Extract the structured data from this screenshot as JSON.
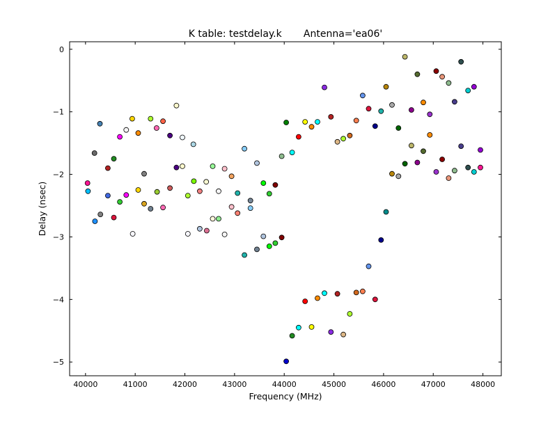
{
  "chart_data": {
    "type": "scatter",
    "title": "K table: testdelay.k       Antenna='ea06'",
    "xlabel": "Frequency (MHz)",
    "ylabel": "Delay (nsec)",
    "xlim": [
      39680,
      48370
    ],
    "ylim": [
      -5.22,
      0.12
    ],
    "xticks": [
      {
        "value": 40000,
        "label": "40000"
      },
      {
        "value": 41000,
        "label": "41000"
      },
      {
        "value": 42000,
        "label": "42000"
      },
      {
        "value": 43000,
        "label": "43000"
      },
      {
        "value": 44000,
        "label": "44000"
      },
      {
        "value": 45000,
        "label": "45000"
      },
      {
        "value": 46000,
        "label": "46000"
      },
      {
        "value": 47000,
        "label": "47000"
      },
      {
        "value": 48000,
        "label": "48000"
      }
    ],
    "yticks": [
      {
        "value": 0,
        "label": "0"
      },
      {
        "value": -1,
        "label": "−1"
      },
      {
        "value": -2,
        "label": "−2"
      },
      {
        "value": -3,
        "label": "−3"
      },
      {
        "value": -4,
        "label": "−4"
      },
      {
        "value": -5,
        "label": "−5"
      }
    ],
    "grid": false,
    "legend": "none",
    "points": [
      {
        "x": 40040,
        "y": -2.14,
        "color": "#ff1493"
      },
      {
        "x": 40050,
        "y": -2.27,
        "color": "#00bfff"
      },
      {
        "x": 40180,
        "y": -1.66,
        "color": "#696969"
      },
      {
        "x": 40190,
        "y": -2.75,
        "color": "#1e90ff"
      },
      {
        "x": 40290,
        "y": -1.19,
        "color": "#4682b4"
      },
      {
        "x": 40300,
        "y": -2.64,
        "color": "#808080"
      },
      {
        "x": 40450,
        "y": -1.9,
        "color": "#b22222"
      },
      {
        "x": 40450,
        "y": -2.34,
        "color": "#4169e1"
      },
      {
        "x": 40570,
        "y": -1.75,
        "color": "#228b22"
      },
      {
        "x": 40570,
        "y": -2.69,
        "color": "#dc143c"
      },
      {
        "x": 40690,
        "y": -1.4,
        "color": "#ff00ff"
      },
      {
        "x": 40690,
        "y": -2.44,
        "color": "#32cd32"
      },
      {
        "x": 40820,
        "y": -1.29,
        "color": "#f5f5f5"
      },
      {
        "x": 40820,
        "y": -2.33,
        "color": "#ff00ff"
      },
      {
        "x": 40940,
        "y": -1.11,
        "color": "#ffd700"
      },
      {
        "x": 40950,
        "y": -2.95,
        "color": "#f8f8ff"
      },
      {
        "x": 41060,
        "y": -1.34,
        "color": "#ff8c00"
      },
      {
        "x": 41060,
        "y": -2.25,
        "color": "#ffd700"
      },
      {
        "x": 41180,
        "y": -1.99,
        "color": "#808080"
      },
      {
        "x": 41180,
        "y": -2.47,
        "color": "#daa520"
      },
      {
        "x": 41310,
        "y": -1.11,
        "color": "#adff2f"
      },
      {
        "x": 41310,
        "y": -2.55,
        "color": "#708090"
      },
      {
        "x": 41430,
        "y": -1.26,
        "color": "#ff69b4"
      },
      {
        "x": 41440,
        "y": -2.28,
        "color": "#9acd32"
      },
      {
        "x": 41560,
        "y": -1.15,
        "color": "#ff6347"
      },
      {
        "x": 41560,
        "y": -2.53,
        "color": "#ff69b4"
      },
      {
        "x": 41700,
        "y": -1.38,
        "color": "#4b0082"
      },
      {
        "x": 41700,
        "y": -2.22,
        "color": "#cd5c5c"
      },
      {
        "x": 41830,
        "y": -0.9,
        "color": "#fffacd"
      },
      {
        "x": 41830,
        "y": -1.89,
        "color": "#4b0082"
      },
      {
        "x": 41950,
        "y": -1.41,
        "color": "#f0f8ff"
      },
      {
        "x": 41950,
        "y": -1.87,
        "color": "#fffacd"
      },
      {
        "x": 42060,
        "y": -2.34,
        "color": "#adff2f"
      },
      {
        "x": 42060,
        "y": -2.95,
        "color": "#f8f8ff"
      },
      {
        "x": 42170,
        "y": -1.52,
        "color": "#add8e6"
      },
      {
        "x": 42180,
        "y": -2.11,
        "color": "#7cfc00"
      },
      {
        "x": 42300,
        "y": -2.27,
        "color": "#f08080"
      },
      {
        "x": 42300,
        "y": -2.87,
        "color": "#b0c4de"
      },
      {
        "x": 42430,
        "y": -2.12,
        "color": "#fafad2"
      },
      {
        "x": 42440,
        "y": -2.9,
        "color": "#db7093"
      },
      {
        "x": 42560,
        "y": -1.87,
        "color": "#98fb98"
      },
      {
        "x": 42560,
        "y": -2.71,
        "color": "#fff8dc"
      },
      {
        "x": 42680,
        "y": -2.27,
        "color": "#f5f5f5"
      },
      {
        "x": 42680,
        "y": -2.71,
        "color": "#90ee90"
      },
      {
        "x": 42800,
        "y": -1.91,
        "color": "#ffc0cb"
      },
      {
        "x": 42800,
        "y": -2.96,
        "color": "#f5f5f5"
      },
      {
        "x": 42940,
        "y": -2.03,
        "color": "#f4a460"
      },
      {
        "x": 42940,
        "y": -2.52,
        "color": "#ffc0cb"
      },
      {
        "x": 43060,
        "y": -2.3,
        "color": "#20b2aa"
      },
      {
        "x": 43060,
        "y": -2.62,
        "color": "#fa8072"
      },
      {
        "x": 43200,
        "y": -1.59,
        "color": "#87cefa"
      },
      {
        "x": 43200,
        "y": -3.29,
        "color": "#20b2aa"
      },
      {
        "x": 43320,
        "y": -2.42,
        "color": "#778899"
      },
      {
        "x": 43320,
        "y": -2.54,
        "color": "#87cefa"
      },
      {
        "x": 43450,
        "y": -1.82,
        "color": "#b0c4de"
      },
      {
        "x": 43450,
        "y": -3.2,
        "color": "#708090"
      },
      {
        "x": 43580,
        "y": -2.14,
        "color": "#00ff00"
      },
      {
        "x": 43580,
        "y": -2.99,
        "color": "#b0c4de"
      },
      {
        "x": 43700,
        "y": -2.31,
        "color": "#32cd32"
      },
      {
        "x": 43700,
        "y": -3.15,
        "color": "#00ff00"
      },
      {
        "x": 43820,
        "y": -2.17,
        "color": "#800000"
      },
      {
        "x": 43820,
        "y": -3.1,
        "color": "#32cd32"
      },
      {
        "x": 43950,
        "y": -1.71,
        "color": "#8fbc8f"
      },
      {
        "x": 43950,
        "y": -3.01,
        "color": "#800000"
      },
      {
        "x": 44040,
        "y": -1.17,
        "color": "#008000"
      },
      {
        "x": 44040,
        "y": -4.99,
        "color": "#0000cd"
      },
      {
        "x": 44160,
        "y": -1.65,
        "color": "#00ffff"
      },
      {
        "x": 44160,
        "y": -4.58,
        "color": "#228b22"
      },
      {
        "x": 44290,
        "y": -1.4,
        "color": "#ff0000"
      },
      {
        "x": 44290,
        "y": -4.45,
        "color": "#00ffff"
      },
      {
        "x": 44420,
        "y": -1.16,
        "color": "#ffff00"
      },
      {
        "x": 44420,
        "y": -4.03,
        "color": "#ff0000"
      },
      {
        "x": 44550,
        "y": -1.24,
        "color": "#ff8c00"
      },
      {
        "x": 44550,
        "y": -4.44,
        "color": "#ffff00"
      },
      {
        "x": 44670,
        "y": -1.16,
        "color": "#00ffff"
      },
      {
        "x": 44670,
        "y": -3.98,
        "color": "#ff8c00"
      },
      {
        "x": 44810,
        "y": -0.61,
        "color": "#8a2be2"
      },
      {
        "x": 44810,
        "y": -3.9,
        "color": "#00ffff"
      },
      {
        "x": 44940,
        "y": -1.08,
        "color": "#b22222"
      },
      {
        "x": 44940,
        "y": -4.52,
        "color": "#8a2be2"
      },
      {
        "x": 45070,
        "y": -1.48,
        "color": "#deb887"
      },
      {
        "x": 45070,
        "y": -3.91,
        "color": "#b22222"
      },
      {
        "x": 45190,
        "y": -1.43,
        "color": "#adff2f"
      },
      {
        "x": 45190,
        "y": -4.56,
        "color": "#deb887"
      },
      {
        "x": 45320,
        "y": -1.38,
        "color": "#d2691e"
      },
      {
        "x": 45320,
        "y": -4.23,
        "color": "#adff2f"
      },
      {
        "x": 45450,
        "y": -1.14,
        "color": "#ff7f50"
      },
      {
        "x": 45450,
        "y": -3.89,
        "color": "#d2691e"
      },
      {
        "x": 45580,
        "y": -0.74,
        "color": "#6495ed"
      },
      {
        "x": 45580,
        "y": -3.87,
        "color": "#ff7f50"
      },
      {
        "x": 45700,
        "y": -0.95,
        "color": "#dc143c"
      },
      {
        "x": 45700,
        "y": -3.47,
        "color": "#6495ed"
      },
      {
        "x": 45830,
        "y": -1.23,
        "color": "#00008b"
      },
      {
        "x": 45830,
        "y": -4.0,
        "color": "#dc143c"
      },
      {
        "x": 45950,
        "y": -0.99,
        "color": "#20b2aa"
      },
      {
        "x": 45950,
        "y": -3.05,
        "color": "#00008b"
      },
      {
        "x": 46050,
        "y": -0.6,
        "color": "#b8860b"
      },
      {
        "x": 46050,
        "y": -2.6,
        "color": "#008b8b"
      },
      {
        "x": 46170,
        "y": -0.89,
        "color": "#a9a9a9"
      },
      {
        "x": 46170,
        "y": -1.99,
        "color": "#b8860b"
      },
      {
        "x": 46300,
        "y": -1.26,
        "color": "#006400"
      },
      {
        "x": 46300,
        "y": -2.03,
        "color": "#a9a9a9"
      },
      {
        "x": 46430,
        "y": -0.12,
        "color": "#bdb76b"
      },
      {
        "x": 46430,
        "y": -1.83,
        "color": "#006400"
      },
      {
        "x": 46560,
        "y": -0.97,
        "color": "#8b008b"
      },
      {
        "x": 46560,
        "y": -1.54,
        "color": "#bdb76b"
      },
      {
        "x": 46680,
        "y": -0.4,
        "color": "#556b2f"
      },
      {
        "x": 46680,
        "y": -1.81,
        "color": "#8b008b"
      },
      {
        "x": 46800,
        "y": -0.85,
        "color": "#ff8c00"
      },
      {
        "x": 46800,
        "y": -1.63,
        "color": "#556b2f"
      },
      {
        "x": 46930,
        "y": -1.04,
        "color": "#9932cc"
      },
      {
        "x": 46930,
        "y": -1.37,
        "color": "#ff8c00"
      },
      {
        "x": 47060,
        "y": -0.35,
        "color": "#8b0000"
      },
      {
        "x": 47060,
        "y": -1.96,
        "color": "#9932cc"
      },
      {
        "x": 47180,
        "y": -0.44,
        "color": "#e9967a"
      },
      {
        "x": 47180,
        "y": -1.76,
        "color": "#8b0000"
      },
      {
        "x": 47310,
        "y": -0.54,
        "color": "#8fbc8f"
      },
      {
        "x": 47310,
        "y": -2.06,
        "color": "#e9967a"
      },
      {
        "x": 47430,
        "y": -0.84,
        "color": "#483d8b"
      },
      {
        "x": 47430,
        "y": -1.94,
        "color": "#8fbc8f"
      },
      {
        "x": 47560,
        "y": -0.2,
        "color": "#2f4f4f"
      },
      {
        "x": 47560,
        "y": -1.55,
        "color": "#483d8b"
      },
      {
        "x": 47700,
        "y": -0.66,
        "color": "#00ced1"
      },
      {
        "x": 47700,
        "y": -1.89,
        "color": "#2f4f4f"
      },
      {
        "x": 47820,
        "y": -0.6,
        "color": "#9400d3"
      },
      {
        "x": 47820,
        "y": -1.96,
        "color": "#00ced1"
      },
      {
        "x": 47950,
        "y": -1.61,
        "color": "#9400d3"
      },
      {
        "x": 47950,
        "y": -1.89,
        "color": "#ff1493"
      }
    ]
  }
}
